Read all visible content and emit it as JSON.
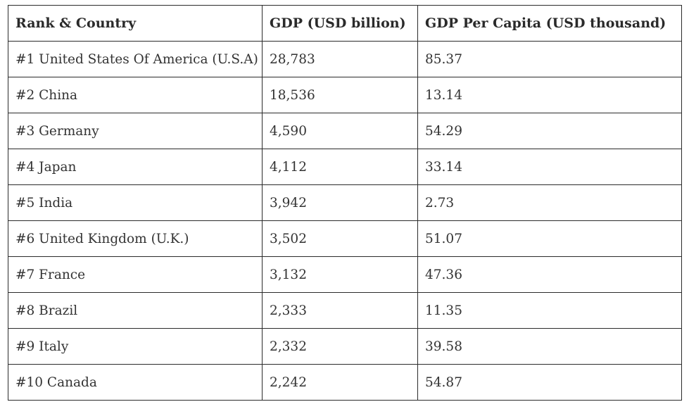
{
  "table": {
    "headers": [
      "Rank & Country",
      "GDP (USD billion)",
      "GDP Per Capita (USD thousand)"
    ],
    "rows": [
      [
        "#1 United States Of America (U.S.A)",
        "28,783",
        "85.37"
      ],
      [
        "#2 China",
        "18,536",
        "13.14"
      ],
      [
        "#3 Germany",
        "4,590",
        "54.29"
      ],
      [
        "#4 Japan",
        "4,112",
        "33.14"
      ],
      [
        "#5 India",
        "3,942",
        "2.73"
      ],
      [
        "#6 United Kingdom (U.K.)",
        "3,502",
        "51.07"
      ],
      [
        "#7 France",
        "3,132",
        "47.36"
      ],
      [
        "#8 Brazil",
        "2,333",
        "11.35"
      ],
      [
        "#9 Italy",
        "2,332",
        "39.58"
      ],
      [
        "#10 Canada",
        "2,242",
        "54.87"
      ]
    ]
  },
  "colors": {
    "border": "#2b2b2b",
    "text": "#333333",
    "background": "#ffffff"
  }
}
